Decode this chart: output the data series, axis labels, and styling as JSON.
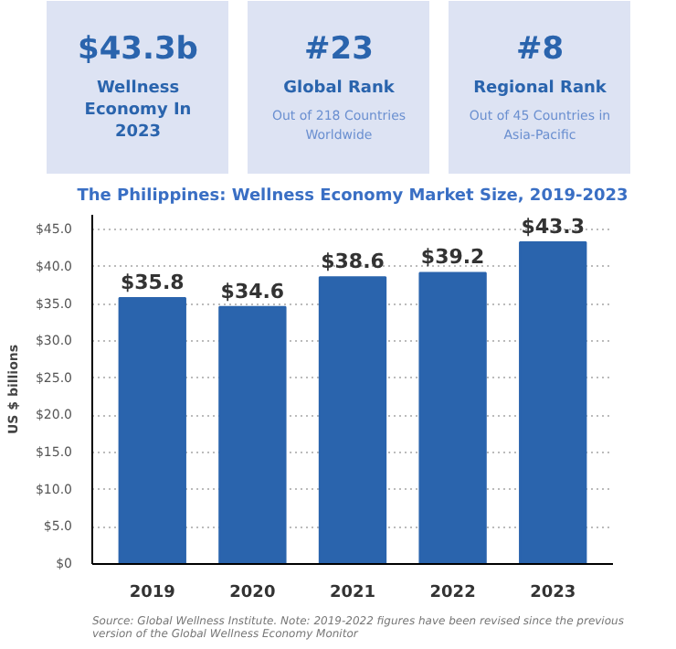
{
  "chart_data": [
    {
      "type": "other",
      "title": "$43.3b",
      "subtitle": "Wellness Economy In 2023"
    },
    {
      "type": "other",
      "title": "#23",
      "subtitle": "Global Rank",
      "annotations": [
        "Out of 218 Countries Worldwide"
      ]
    },
    {
      "type": "other",
      "title": "#8",
      "subtitle": "Regional Rank",
      "annotations": [
        "Out of 45 Countries in Asia-Pacific"
      ]
    },
    {
      "type": "bar",
      "title": "The Philippines: Wellness Economy Market Size, 2019-2023",
      "ylabel": "US $ billions",
      "categories": [
        "2019",
        "2020",
        "2021",
        "2022",
        "2023"
      ],
      "values": [
        35.8,
        34.6,
        38.6,
        39.2,
        43.3
      ],
      "value_labels": [
        "$35.8",
        "$34.6",
        "$38.6",
        "$39.2",
        "$43.3"
      ],
      "color": "#2a64ad",
      "ylim": [
        0,
        47
      ],
      "yticks": [
        {
          "value": 0,
          "label": "$0"
        },
        {
          "value": 5,
          "label": "$5.0"
        },
        {
          "value": 10,
          "label": "$10.0"
        },
        {
          "value": 15,
          "label": "$15.0"
        },
        {
          "value": 20,
          "label": "$20.0"
        },
        {
          "value": 25,
          "label": "$25.0"
        },
        {
          "value": 30,
          "label": "$30.0"
        },
        {
          "value": 35,
          "label": "$35.0"
        },
        {
          "value": 40,
          "label": "$40.0"
        },
        {
          "value": 45,
          "label": "$45.0"
        }
      ],
      "grid": "y",
      "annotations": [
        "Source: Global Wellness Institute. Note: 2019-2022 figures have been revised since the previous version of the Global Wellness Economy Monitor"
      ]
    }
  ]
}
